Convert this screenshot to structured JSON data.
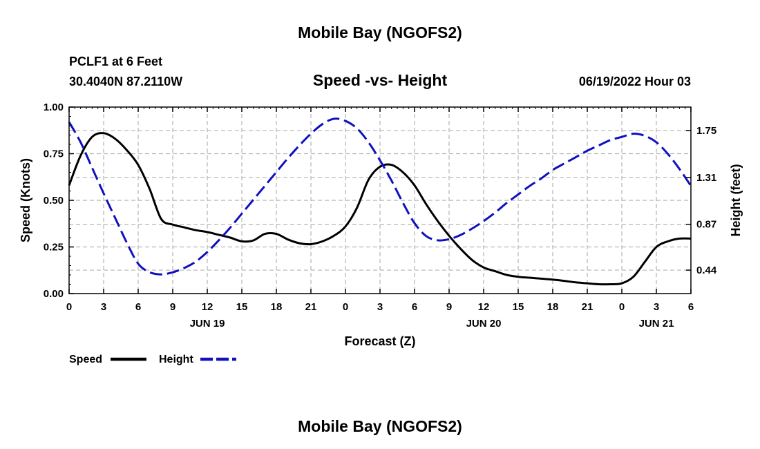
{
  "page": {
    "title": "Mobile Bay (NGOFS2)",
    "bottom_title": "Mobile Bay (NGOFS2)"
  },
  "header": {
    "station": "PCLF1 at 6 Feet",
    "location": "30.4040N  87.2110W",
    "subtitle": "Speed -vs- Height",
    "date": "06/19/2022 Hour 03"
  },
  "legend": {
    "speed_label": "Speed",
    "height_label": "Height"
  },
  "colors": {
    "speed": "#000000",
    "height": "#1010c0",
    "grid": "#b4b4b4"
  },
  "chart_data": {
    "type": "line",
    "xlabel": "Forecast (Z)",
    "ylabel": "Speed (Knots)",
    "y2label": "Height (feet)",
    "x_unit": "hours from 06/19/2022 00Z",
    "xlim": [
      0,
      54
    ],
    "ylim": [
      0,
      1
    ],
    "y2lim": [
      0.22,
      1.97
    ],
    "grid": true,
    "legend_position": "bottom-left",
    "x_ticks": [
      {
        "x": 0,
        "label": "0"
      },
      {
        "x": 3,
        "label": "3"
      },
      {
        "x": 6,
        "label": "6"
      },
      {
        "x": 9,
        "label": "9"
      },
      {
        "x": 12,
        "label": "12"
      },
      {
        "x": 15,
        "label": "15"
      },
      {
        "x": 18,
        "label": "18"
      },
      {
        "x": 21,
        "label": "21"
      },
      {
        "x": 24,
        "label": "0"
      },
      {
        "x": 27,
        "label": "3"
      },
      {
        "x": 30,
        "label": "6"
      },
      {
        "x": 33,
        "label": "9"
      },
      {
        "x": 36,
        "label": "12"
      },
      {
        "x": 39,
        "label": "15"
      },
      {
        "x": 42,
        "label": "18"
      },
      {
        "x": 45,
        "label": "21"
      },
      {
        "x": 48,
        "label": "0"
      },
      {
        "x": 51,
        "label": "3"
      },
      {
        "x": 54,
        "label": "6"
      }
    ],
    "date_labels": [
      {
        "x": 12,
        "label": "JUN 19"
      },
      {
        "x": 36,
        "label": "JUN 20"
      },
      {
        "x": 51,
        "label": "JUN 21"
      }
    ],
    "y_ticks": [
      {
        "y": 0.0,
        "label": "0.00"
      },
      {
        "y": 0.25,
        "label": "0.25"
      },
      {
        "y": 0.5,
        "label": "0.50"
      },
      {
        "y": 0.75,
        "label": "0.75"
      },
      {
        "y": 1.0,
        "label": "1.00"
      }
    ],
    "y2_ticks": [
      {
        "y": 0.44,
        "label": "0.44"
      },
      {
        "y": 0.87,
        "label": "0.87"
      },
      {
        "y": 1.31,
        "label": "1.31"
      },
      {
        "y": 1.75,
        "label": "1.75"
      }
    ],
    "series": [
      {
        "name": "Speed",
        "axis": "left",
        "x": [
          0,
          1,
          2,
          3,
          4,
          5,
          6,
          7,
          8,
          9,
          10,
          11,
          12,
          13,
          14,
          15,
          16,
          17,
          18,
          19,
          20,
          21,
          22,
          23,
          24,
          25,
          26,
          27,
          28,
          29,
          30,
          31,
          32,
          33,
          34,
          35,
          36,
          37,
          38,
          39,
          40,
          41,
          42,
          43,
          44,
          45,
          46,
          47,
          48,
          49,
          50,
          51,
          52,
          53,
          54
        ],
        "y": [
          0.58,
          0.74,
          0.84,
          0.86,
          0.83,
          0.77,
          0.69,
          0.56,
          0.4,
          0.37,
          0.355,
          0.34,
          0.33,
          0.315,
          0.3,
          0.28,
          0.285,
          0.32,
          0.32,
          0.29,
          0.27,
          0.265,
          0.28,
          0.31,
          0.36,
          0.46,
          0.61,
          0.68,
          0.69,
          0.65,
          0.58,
          0.48,
          0.39,
          0.31,
          0.24,
          0.18,
          0.14,
          0.12,
          0.1,
          0.09,
          0.085,
          0.08,
          0.075,
          0.068,
          0.06,
          0.055,
          0.05,
          0.05,
          0.055,
          0.09,
          0.17,
          0.25,
          0.28,
          0.295,
          0.295
        ]
      },
      {
        "name": "Height",
        "axis": "right",
        "x": [
          0,
          1,
          2,
          3,
          4,
          5,
          6,
          7,
          8,
          9,
          10,
          11,
          12,
          13,
          14,
          15,
          16,
          17,
          18,
          19,
          20,
          21,
          22,
          23,
          24,
          25,
          26,
          27,
          28,
          29,
          30,
          31,
          32,
          33,
          34,
          35,
          36,
          37,
          38,
          39,
          40,
          41,
          42,
          43,
          44,
          45,
          46,
          47,
          48,
          49,
          50,
          51,
          52,
          53,
          54
        ],
        "y": [
          1.83,
          1.64,
          1.4,
          1.16,
          0.93,
          0.7,
          0.5,
          0.42,
          0.4,
          0.42,
          0.46,
          0.52,
          0.61,
          0.72,
          0.84,
          0.97,
          1.1,
          1.23,
          1.36,
          1.49,
          1.61,
          1.72,
          1.81,
          1.86,
          1.84,
          1.77,
          1.64,
          1.47,
          1.28,
          1.07,
          0.88,
          0.76,
          0.72,
          0.73,
          0.77,
          0.83,
          0.9,
          0.98,
          1.07,
          1.15,
          1.23,
          1.3,
          1.38,
          1.44,
          1.5,
          1.56,
          1.61,
          1.66,
          1.69,
          1.72,
          1.7,
          1.64,
          1.53,
          1.39,
          1.23
        ]
      }
    ]
  }
}
